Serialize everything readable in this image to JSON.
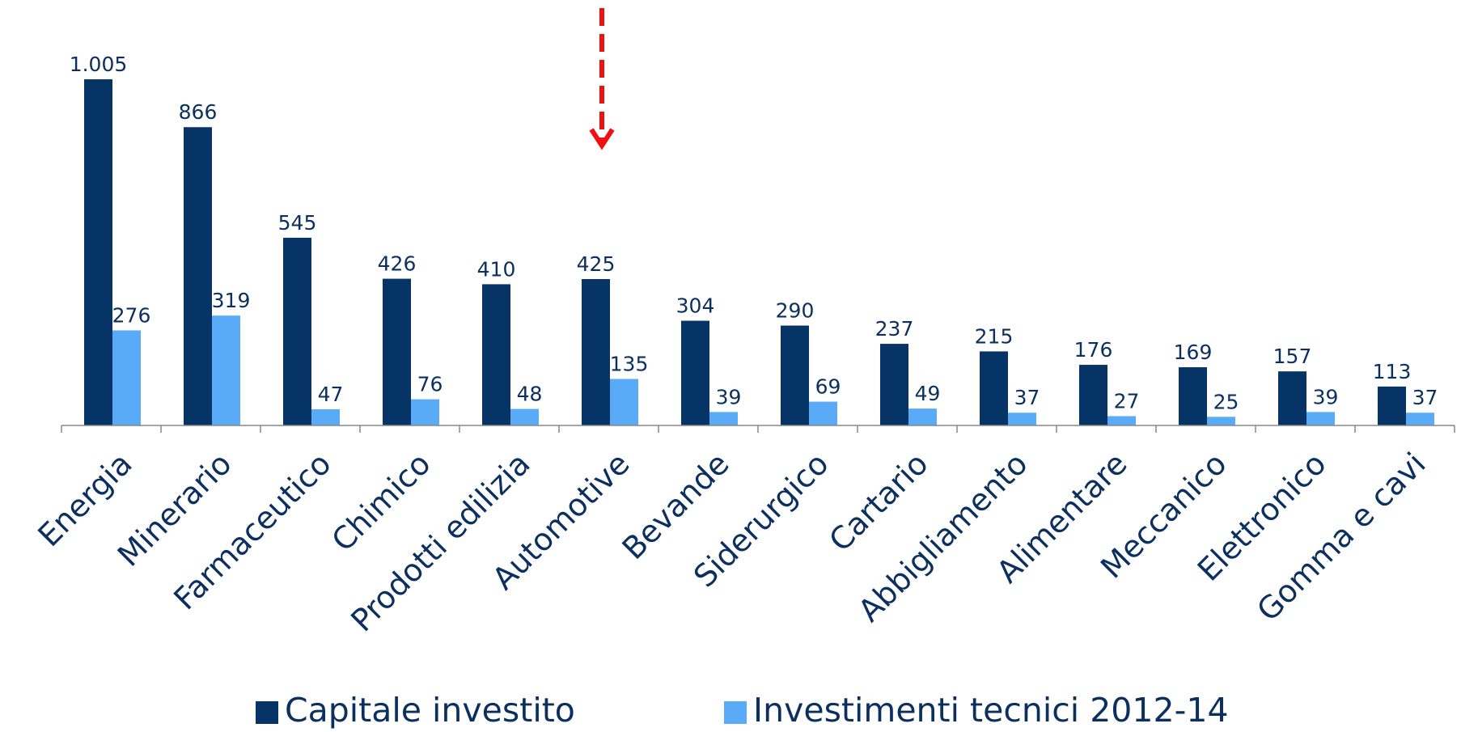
{
  "chart_data": {
    "type": "bar",
    "categories": [
      "Energia",
      "Minerario",
      "Farmaceutico",
      "Chimico",
      "Prodotti edilizia",
      "Automotive",
      "Bevande",
      "Siderurgico",
      "Cartario",
      "Abbigliamento",
      "Alimentare",
      "Meccanico",
      "Elettronico",
      "Gomma e cavi"
    ],
    "series": [
      {
        "name": "Capitale investito",
        "color": "#063466",
        "values": [
          1005,
          866,
          545,
          426,
          410,
          425,
          304,
          290,
          237,
          215,
          176,
          169,
          157,
          113
        ],
        "value_labels": [
          "1.005",
          "866",
          "545",
          "426",
          "410",
          "425",
          "304",
          "290",
          "237",
          "215",
          "176",
          "169",
          "157",
          "113"
        ]
      },
      {
        "name": "Investimenti tecnici 2012-14",
        "color": "#5aabf7",
        "values": [
          276,
          319,
          47,
          76,
          48,
          135,
          39,
          69,
          49,
          37,
          27,
          25,
          39,
          37
        ]
      }
    ],
    "ylim": [
      0,
      1200
    ]
  }
}
